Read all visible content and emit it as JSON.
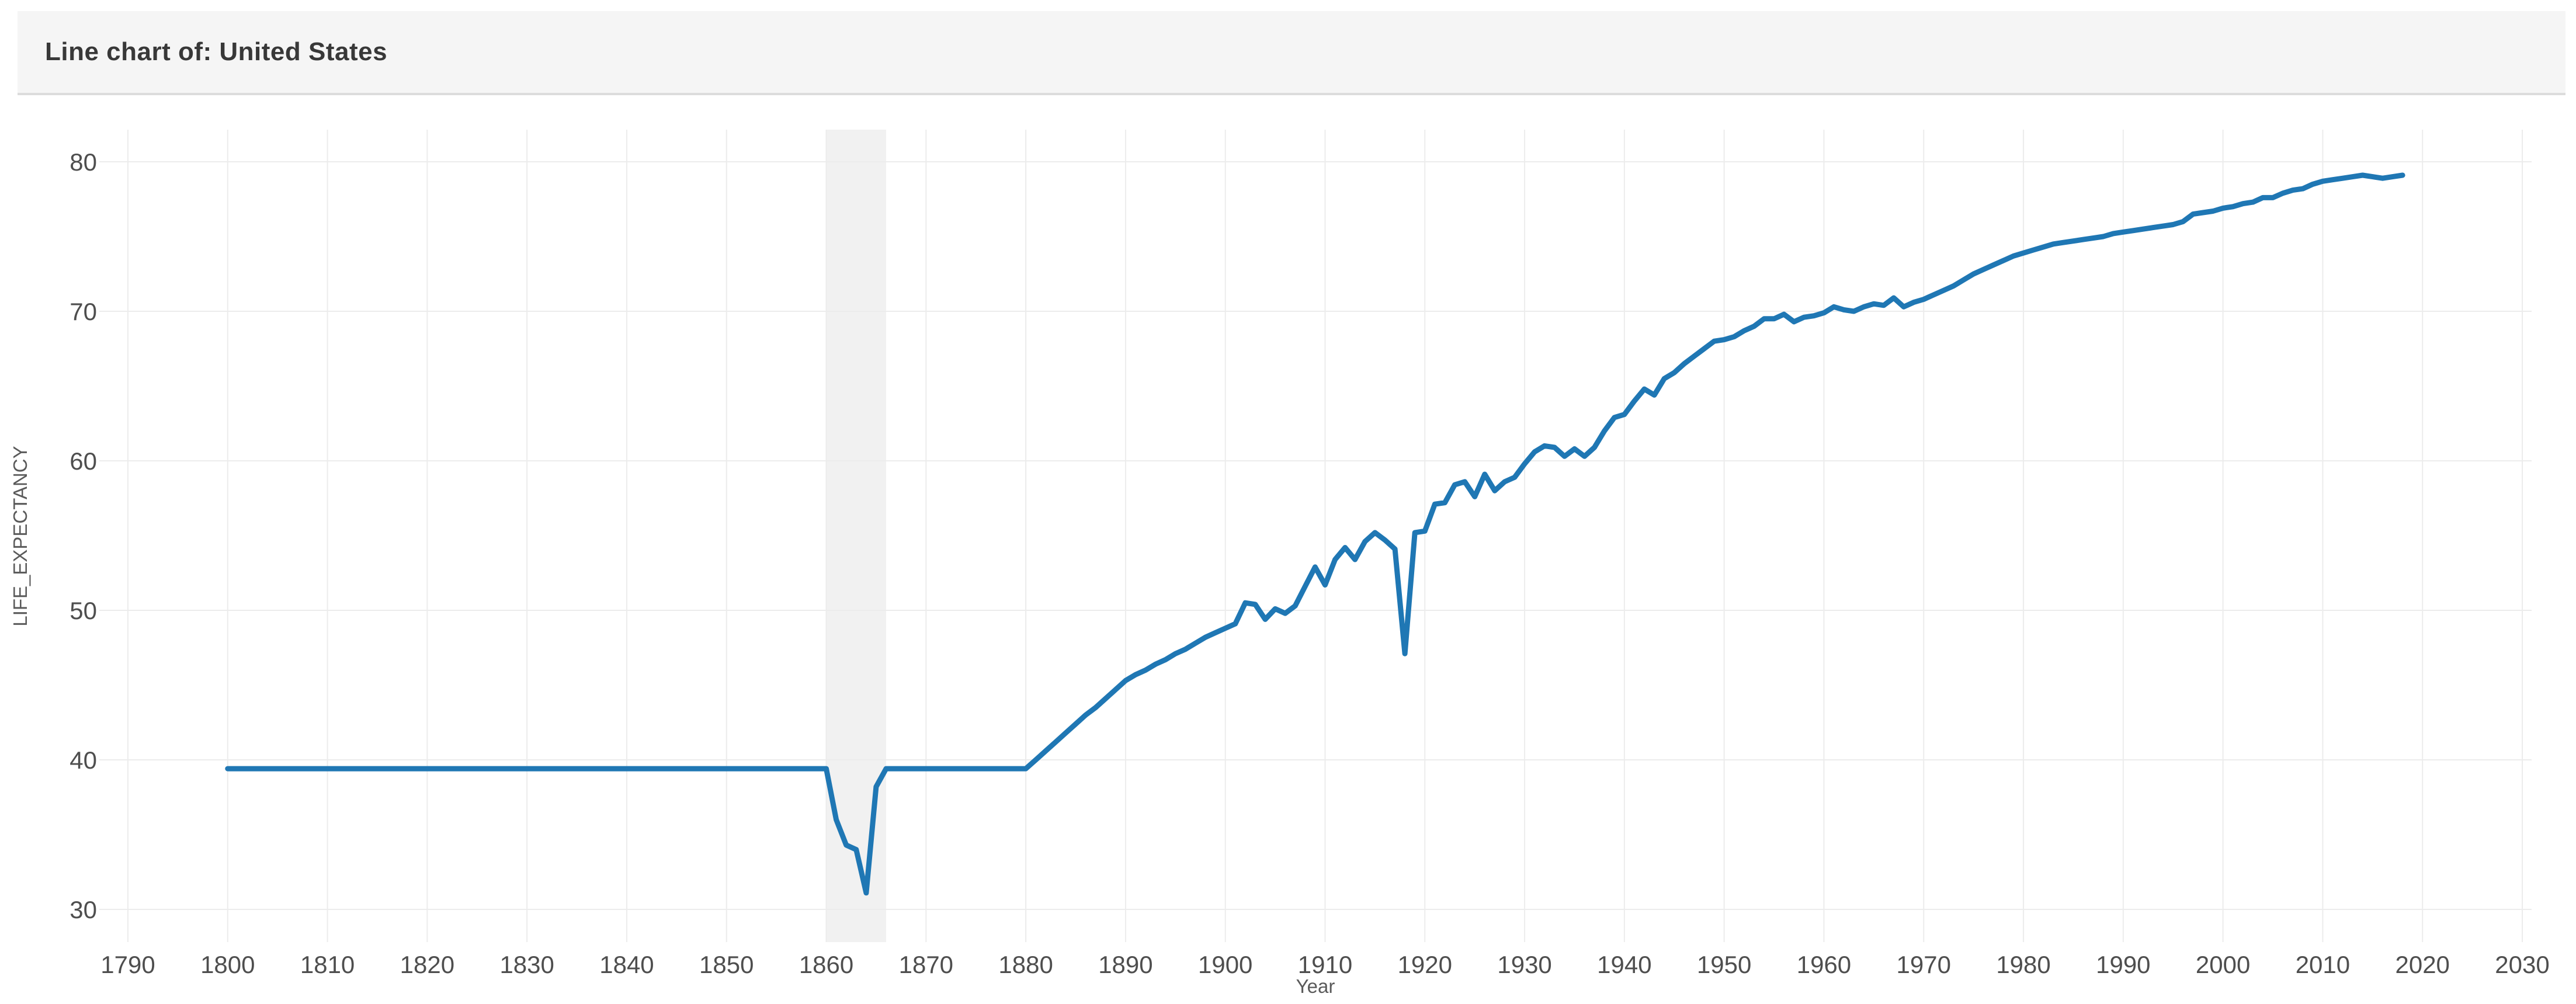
{
  "header": {
    "title": "Line chart of: United States"
  },
  "colors": {
    "line": "#1f77b4",
    "grid": "#ececec",
    "highlight_band": "#f1f1f1",
    "header_bg": "#f5f5f5",
    "tick_label": "#4e4e4e",
    "axis_title": "#5a5a5a"
  },
  "chart_data": {
    "type": "line",
    "title": "Line chart of: United States",
    "xlabel": "Year",
    "ylabel": "LIFE_EXPECTANCY",
    "legend": "none",
    "grid": true,
    "x_ticks": [
      1790,
      1800,
      1810,
      1820,
      1830,
      1840,
      1850,
      1860,
      1870,
      1880,
      1890,
      1900,
      1910,
      1920,
      1930,
      1940,
      1950,
      1960,
      1970,
      1980,
      1990,
      2000,
      2010,
      2020,
      2030
    ],
    "y_ticks": [
      30,
      40,
      50,
      60,
      70,
      80
    ],
    "xlim": [
      1787,
      2032
    ],
    "ylim": [
      27.8,
      82.2
    ],
    "highlight_band": {
      "x_from": 1860,
      "x_to": 1866
    },
    "series": [
      {
        "name": "United States",
        "x_start": 1800,
        "x_step": 1,
        "x_end": 2018,
        "values": [
          39.41,
          39.41,
          39.41,
          39.41,
          39.41,
          39.41,
          39.41,
          39.41,
          39.41,
          39.41,
          39.41,
          39.41,
          39.41,
          39.41,
          39.41,
          39.41,
          39.41,
          39.41,
          39.41,
          39.41,
          39.41,
          39.41,
          39.41,
          39.41,
          39.41,
          39.41,
          39.41,
          39.41,
          39.41,
          39.41,
          39.41,
          39.41,
          39.41,
          39.41,
          39.41,
          39.41,
          39.41,
          39.41,
          39.41,
          39.41,
          39.41,
          39.41,
          39.41,
          39.41,
          39.41,
          39.41,
          39.41,
          39.41,
          39.41,
          39.41,
          39.41,
          39.41,
          39.41,
          39.41,
          39.41,
          39.41,
          39.41,
          39.41,
          39.41,
          39.41,
          39.41,
          36.0,
          34.3,
          34.0,
          31.1,
          38.2,
          39.41,
          39.41,
          39.41,
          39.41,
          39.41,
          39.41,
          39.41,
          39.41,
          39.41,
          39.41,
          39.41,
          39.41,
          39.41,
          39.41,
          39.41,
          40.0,
          40.6,
          41.2,
          41.8,
          42.4,
          43.0,
          43.5,
          44.1,
          44.7,
          45.3,
          45.7,
          46.0,
          46.4,
          46.7,
          47.1,
          47.4,
          47.8,
          48.2,
          48.5,
          48.8,
          49.1,
          50.5,
          50.4,
          49.4,
          50.1,
          49.8,
          50.3,
          51.6,
          52.9,
          51.7,
          53.4,
          54.2,
          53.4,
          54.6,
          55.2,
          54.7,
          54.1,
          47.1,
          55.2,
          55.3,
          57.1,
          57.2,
          58.4,
          58.6,
          57.6,
          59.1,
          58.0,
          58.6,
          58.9,
          59.8,
          60.6,
          61.0,
          60.9,
          60.3,
          60.8,
          60.3,
          60.9,
          62.0,
          62.9,
          63.1,
          64.0,
          64.8,
          64.4,
          65.5,
          65.9,
          66.5,
          67.0,
          67.5,
          68.0,
          68.1,
          68.3,
          68.7,
          69.0,
          69.5,
          69.5,
          69.8,
          69.3,
          69.6,
          69.7,
          69.9,
          70.3,
          70.1,
          70.0,
          70.3,
          70.5,
          70.4,
          70.9,
          70.3,
          70.6,
          70.8,
          71.1,
          71.4,
          71.7,
          72.1,
          72.5,
          72.8,
          73.1,
          73.4,
          73.7,
          73.9,
          74.1,
          74.3,
          74.5,
          74.6,
          74.7,
          74.8,
          74.9,
          75.0,
          75.2,
          75.3,
          75.4,
          75.5,
          75.6,
          75.7,
          75.8,
          76.0,
          76.5,
          76.6,
          76.7,
          76.9,
          77.0,
          77.2,
          77.3,
          77.6,
          77.6,
          77.9,
          78.1,
          78.2,
          78.5,
          78.7,
          78.8,
          78.9,
          79.0,
          79.1,
          79.0,
          78.9,
          79.0,
          79.1
        ]
      }
    ]
  }
}
